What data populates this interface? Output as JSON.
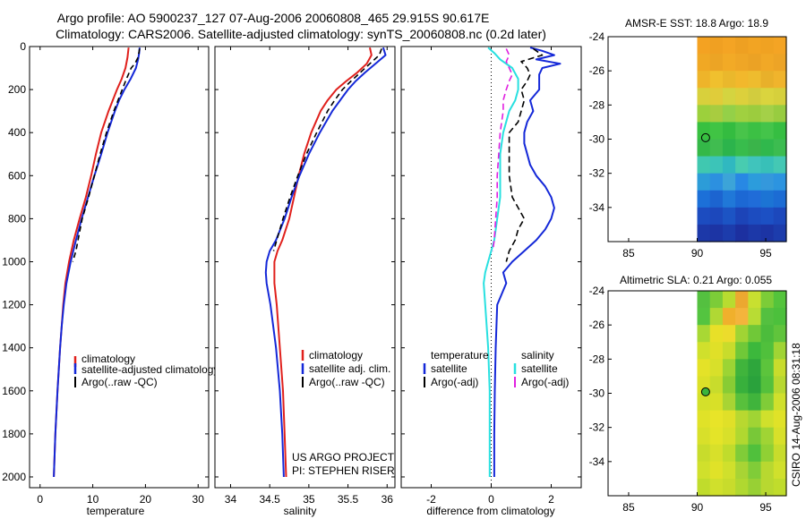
{
  "title": {
    "line1": "Argo profile: AO 5900237_127 07-Aug-2006 20060808_465 29.915S 90.617E",
    "line2": "Climatology: CARS2006. Satellite-adjusted climatology: synTS_20060808.nc (0.2d later)"
  },
  "colors": {
    "climatology": "#e0201c",
    "satellite": "#1428d8",
    "argo": "#000000",
    "sat_salinity": "#28e0e0",
    "argo_salinity": "#e020e0"
  },
  "chart_data": [
    {
      "type": "line",
      "name": "temperature",
      "xlabel": "temperature",
      "ylabel": "",
      "xlim": [
        -2,
        32
      ],
      "ylim": [
        2050,
        0
      ],
      "xticks": [
        "0",
        "10",
        "20",
        "30"
      ],
      "xtick_values": [
        0,
        10,
        20,
        30
      ],
      "yticks": [
        "0",
        "200",
        "400",
        "600",
        "800",
        "1000",
        "1200",
        "1400",
        "1600",
        "1800",
        "2000"
      ],
      "ytick_values": [
        0,
        200,
        400,
        600,
        800,
        1000,
        1200,
        1400,
        1600,
        1800,
        2000
      ],
      "legend": [
        "climatology",
        "satellite-adjusted climatology",
        "Argo(..raw -QC)"
      ],
      "series": [
        {
          "name": "climatology",
          "color_key": "climatology",
          "dash": "",
          "depth": [
            5,
            50,
            100,
            150,
            200,
            250,
            300,
            400,
            500,
            600,
            700,
            800,
            900,
            1000,
            1100,
            1200,
            1300,
            1400,
            1600,
            1800,
            2000
          ],
          "values": [
            16.8,
            16.6,
            16.2,
            15.5,
            14.6,
            13.8,
            13.0,
            11.6,
            10.6,
            9.7,
            8.7,
            7.5,
            6.4,
            5.5,
            4.8,
            4.4,
            4.1,
            3.8,
            3.3,
            2.9,
            2.6
          ]
        },
        {
          "name": "satellite-adjusted climatology",
          "color_key": "satellite",
          "dash": "",
          "depth": [
            5,
            30,
            60,
            100,
            150,
            200,
            250,
            300,
            400,
            500,
            600,
            700,
            800,
            900,
            1000,
            1100,
            1200,
            1300,
            1400,
            1600,
            1800,
            2000
          ],
          "values": [
            18.9,
            18.8,
            18.6,
            18.2,
            17.2,
            16.0,
            15.0,
            14.2,
            12.8,
            11.6,
            10.3,
            9.1,
            7.9,
            6.8,
            5.8,
            5.0,
            4.5,
            4.1,
            3.8,
            3.3,
            2.9,
            2.6
          ]
        },
        {
          "name": "Argo(..raw -QC)",
          "color_key": "argo",
          "dash": "6,4",
          "depth": [
            10,
            50,
            80,
            100,
            150,
            200,
            300,
            400,
            500,
            600,
            700,
            800,
            900,
            950,
            1000
          ],
          "values": [
            18.9,
            18.6,
            18.0,
            17.3,
            16.4,
            15.6,
            14.0,
            12.6,
            11.4,
            10.3,
            9.2,
            8.0,
            7.2,
            6.8,
            6.2
          ]
        }
      ]
    },
    {
      "type": "line",
      "name": "salinity",
      "xlabel": "salinity",
      "xlim": [
        33.8,
        36.1
      ],
      "ylim": [
        2050,
        0
      ],
      "xticks": [
        "34",
        "34.5",
        "35",
        "35.5",
        "36"
      ],
      "xtick_values": [
        34,
        34.5,
        35,
        35.5,
        36
      ],
      "legend": [
        "climatology",
        "satellite adj. clim.",
        "Argo(..raw -QC)"
      ],
      "annotation": [
        "US ARGO PROJECT",
        "PI: STEPHEN RISER"
      ],
      "series": [
        {
          "name": "climatology",
          "color_key": "climatology",
          "dash": "",
          "depth": [
            5,
            40,
            80,
            120,
            160,
            200,
            250,
            300,
            400,
            500,
            600,
            700,
            800,
            900,
            950,
            1000,
            1100,
            1200,
            1400,
            1600,
            1800,
            2000
          ],
          "values": [
            35.78,
            35.8,
            35.74,
            35.62,
            35.48,
            35.35,
            35.24,
            35.15,
            35.03,
            34.94,
            34.87,
            34.81,
            34.75,
            34.66,
            34.6,
            34.56,
            34.56,
            34.59,
            34.63,
            34.67,
            34.69,
            34.71
          ]
        },
        {
          "name": "satellite adj. clim.",
          "color_key": "satellite",
          "dash": "",
          "depth": [
            5,
            40,
            80,
            120,
            160,
            200,
            250,
            300,
            400,
            500,
            600,
            700,
            800,
            900,
            950,
            1000,
            1050,
            1100,
            1200,
            1400,
            1600,
            1800,
            2000
          ],
          "values": [
            35.95,
            35.98,
            35.85,
            35.72,
            35.6,
            35.5,
            35.4,
            35.3,
            35.14,
            35.0,
            34.88,
            34.78,
            34.69,
            34.58,
            34.5,
            34.46,
            34.45,
            34.46,
            34.51,
            34.58,
            34.63,
            34.66,
            34.68
          ]
        },
        {
          "name": "Argo(..raw -QC)",
          "color_key": "argo",
          "dash": "6,4",
          "depth": [
            10,
            40,
            80,
            120,
            160,
            200,
            250,
            300,
            400,
            500,
            600,
            700,
            800,
            900,
            950
          ],
          "values": [
            35.93,
            35.9,
            35.78,
            35.66,
            35.54,
            35.43,
            35.33,
            35.24,
            35.1,
            34.97,
            34.86,
            34.76,
            34.67,
            34.59,
            34.55
          ]
        }
      ]
    },
    {
      "type": "line",
      "name": "difference from climatology",
      "xlabel": "difference from climatology",
      "xlim": [
        -3,
        3
      ],
      "ylim": [
        2050,
        0
      ],
      "xticks": [
        "-2",
        "0",
        "2"
      ],
      "xtick_values": [
        -2,
        0,
        2
      ],
      "legend_headers": [
        "temperature",
        "salinity"
      ],
      "legend_left": [
        "satellite",
        "Argo(-adj)"
      ],
      "legend_right": [
        "satellite",
        "Argo(-adj)"
      ],
      "zero_line": true,
      "series": [
        {
          "name": "temperature satellite",
          "color_key": "satellite",
          "dash": "",
          "depth": [
            5,
            20,
            40,
            60,
            80,
            100,
            130,
            160,
            200,
            250,
            300,
            350,
            400,
            450,
            500,
            550,
            600,
            650,
            700,
            750,
            800,
            850,
            900,
            950,
            1000,
            1050,
            1100,
            1200,
            1400,
            1600,
            1800,
            2000
          ],
          "values": [
            1.3,
            1.7,
            2.1,
            1.5,
            2.3,
            1.7,
            1.6,
            1.6,
            1.6,
            1.3,
            1.4,
            1.2,
            1.1,
            1.1,
            1.2,
            1.3,
            1.5,
            1.8,
            2.0,
            2.1,
            2.0,
            1.8,
            1.5,
            1.1,
            0.7,
            0.4,
            0.5,
            0.2,
            0.15,
            0.12,
            0.1,
            0.1
          ]
        },
        {
          "name": "temperature Argo(-adj)",
          "color_key": "argo",
          "dash": "7,4",
          "depth": [
            10,
            40,
            70,
            100,
            130,
            160,
            200,
            250,
            300,
            350,
            400,
            500,
            600,
            700,
            800,
            850,
            900,
            950,
            1000
          ],
          "values": [
            1.4,
            1.7,
            1.0,
            1.2,
            1.3,
            1.2,
            1.0,
            1.1,
            1.0,
            0.9,
            0.6,
            0.6,
            0.6,
            0.7,
            1.1,
            0.9,
            0.8,
            0.6,
            0.5
          ]
        },
        {
          "name": "salinity satellite",
          "color_key": "sat_salinity",
          "dash": "",
          "depth": [
            5,
            30,
            60,
            100,
            150,
            200,
            250,
            300,
            400,
            500,
            600,
            700,
            800,
            900,
            950,
            1000,
            1050,
            1100,
            1200,
            1400,
            1600,
            1800,
            2000
          ],
          "values": [
            -0.1,
            0.1,
            0.3,
            0.7,
            0.9,
            0.9,
            0.8,
            0.6,
            0.4,
            0.3,
            0.3,
            0.3,
            0.2,
            0.1,
            0.0,
            -0.1,
            -0.2,
            -0.25,
            -0.2,
            -0.1,
            -0.05,
            -0.05,
            -0.05
          ]
        },
        {
          "name": "salinity Argo(-adj)",
          "color_key": "argo_salinity",
          "dash": "7,4",
          "depth": [
            10,
            40,
            70,
            100,
            130,
            160,
            200,
            250,
            300,
            400,
            500,
            600,
            700,
            800,
            900,
            950
          ],
          "values": [
            0.5,
            0.6,
            0.5,
            0.6,
            0.7,
            0.6,
            0.5,
            0.4,
            0.4,
            0.3,
            0.25,
            0.2,
            0.2,
            0.15,
            0.1,
            0.05
          ]
        }
      ]
    },
    {
      "type": "heatmap",
      "name": "sst-map",
      "title": "AMSR-E SST: 18.8 Argo: 18.9",
      "xlim": [
        83.5,
        96.5
      ],
      "ylim": [
        -36,
        -24
      ],
      "xticks": [
        "85",
        "90",
        "95"
      ],
      "xtick_values": [
        85,
        90,
        95
      ],
      "yticks": [
        "-24",
        "-26",
        "-28",
        "-30",
        "-32",
        "-34"
      ],
      "ytick_values": [
        -24,
        -26,
        -28,
        -30,
        -32,
        -34
      ],
      "data_lon_min": 90,
      "marker": [
        90.617,
        -29.915
      ],
      "marker_color": "none",
      "rows_top_to_bottom": [
        [
          "#f4a222",
          "#f0a022",
          "#f4a424",
          "#eea022",
          "#f2a423",
          "#f0a222",
          "#f4a424"
        ],
        [
          "#f0a824",
          "#eca425",
          "#f2aa26",
          "#efa626",
          "#eba225",
          "#f1a826",
          "#eda426"
        ],
        [
          "#eeb42a",
          "#f0c02e",
          "#eab82c",
          "#f2b82c",
          "#eebc2e",
          "#e8b02a",
          "#f0b42c"
        ],
        [
          "#d8d03c",
          "#e0cc3a",
          "#d4d440",
          "#dcd03c",
          "#d2cc3e",
          "#dad43e",
          "#d6d03c"
        ],
        [
          "#9cd03c",
          "#a8cc40",
          "#94d048",
          "#a0d040",
          "#9ccc3e",
          "#a4d048",
          "#98cc40"
        ],
        [
          "#38c040",
          "#40c444",
          "#34bc40",
          "#48c44a",
          "#3cc044",
          "#44c44a",
          "#36be42"
        ],
        [
          "#34b848",
          "#40bc50",
          "#2cb44c",
          "#38bc4c",
          "#3ab44a",
          "#30b84c",
          "#3cbc50"
        ],
        [
          "#40c8b0",
          "#3cc4b8",
          "#30b8c0",
          "#48ccb0",
          "#40c4bc",
          "#38c0b8",
          "#44c8b4"
        ],
        [
          "#2c9cd8",
          "#2c90e0",
          "#3ca4d8",
          "#2888e4",
          "#2c9cdc",
          "#3498dc",
          "#2c94e0"
        ],
        [
          "#1c70d8",
          "#1c64d0",
          "#2078d8",
          "#1c68d4",
          "#206cd8",
          "#1c74d4",
          "#1c6cd4"
        ],
        [
          "#1c4cc0",
          "#1c48bc",
          "#1c54c4",
          "#1c44b8",
          "#1c4cc0",
          "#1c50c4",
          "#1c48bc"
        ],
        [
          "#1c38a8",
          "#1c34a4",
          "#1c3cac",
          "#1c30a0",
          "#1c38a8",
          "#1c34a4",
          "#1c3cac"
        ]
      ]
    },
    {
      "type": "heatmap",
      "name": "sla-map",
      "title": "Altimetric SLA: 0.21 Argo: 0.055",
      "xlim": [
        83.5,
        96.5
      ],
      "ylim": [
        -36,
        -24
      ],
      "xticks": [
        "85",
        "90",
        "95"
      ],
      "xtick_values": [
        85,
        90,
        95
      ],
      "yticks": [
        "-24",
        "-26",
        "-28",
        "-30",
        "-32",
        "-34"
      ],
      "ytick_values": [
        -24,
        -26,
        -28,
        -30,
        -32,
        -34
      ],
      "data_lon_min": 90,
      "marker": [
        90.617,
        -29.915
      ],
      "marker_color": "#3cb43c",
      "rows_top_to_bottom": [
        [
          "#54c040",
          "#7ccc38",
          "#b8dc30",
          "#eca830",
          "#c8e030",
          "#7ccc38",
          "#54c43c"
        ],
        [
          "#54c440",
          "#b0d834",
          "#f0b02c",
          "#f4b43c",
          "#b8dc34",
          "#54c040",
          "#4cc03c"
        ],
        [
          "#a8d834",
          "#e8e028",
          "#ecdc2c",
          "#a0d434",
          "#70c838",
          "#4cbc3c",
          "#60c43c"
        ],
        [
          "#d0e02c",
          "#e0e028",
          "#c8dc2c",
          "#70c838",
          "#3cb83c",
          "#50c03c",
          "#a0d434"
        ],
        [
          "#e4e228",
          "#d8e02a",
          "#9cd434",
          "#40b43c",
          "#2ea63c",
          "#5cc43c",
          "#c8dc2c"
        ],
        [
          "#dce028",
          "#c8dc2c",
          "#88cc34",
          "#38b03c",
          "#2aa23c",
          "#54c03c",
          "#b8d830"
        ],
        [
          "#d4e02a",
          "#d8e028",
          "#a8d434",
          "#58c03c",
          "#40b43c",
          "#80cc38",
          "#d0e02c"
        ],
        [
          "#e0e228",
          "#e8e428",
          "#e0e028",
          "#b8d830",
          "#a0d434",
          "#d0e02c",
          "#e0e228"
        ],
        [
          "#d8e02a",
          "#e4e428",
          "#d8e02a",
          "#b0d830",
          "#78c838",
          "#a0d434",
          "#d8e02a"
        ],
        [
          "#c8dc2c",
          "#d8e02a",
          "#c0dc2c",
          "#80cc38",
          "#50c03c",
          "#90d034",
          "#c8dc2c"
        ],
        [
          "#d0e02c",
          "#e0e228",
          "#d0e02c",
          "#a8d434",
          "#80cc38",
          "#b8d830",
          "#d0e02c"
        ],
        [
          "#c0dc2c",
          "#d0e02c",
          "#c8dc2c",
          "#b0d830",
          "#98d034",
          "#b8d830",
          "#c0dc2c"
        ]
      ]
    }
  ],
  "footer_label": "CSIRO 14-Aug-2006 08:31:18"
}
